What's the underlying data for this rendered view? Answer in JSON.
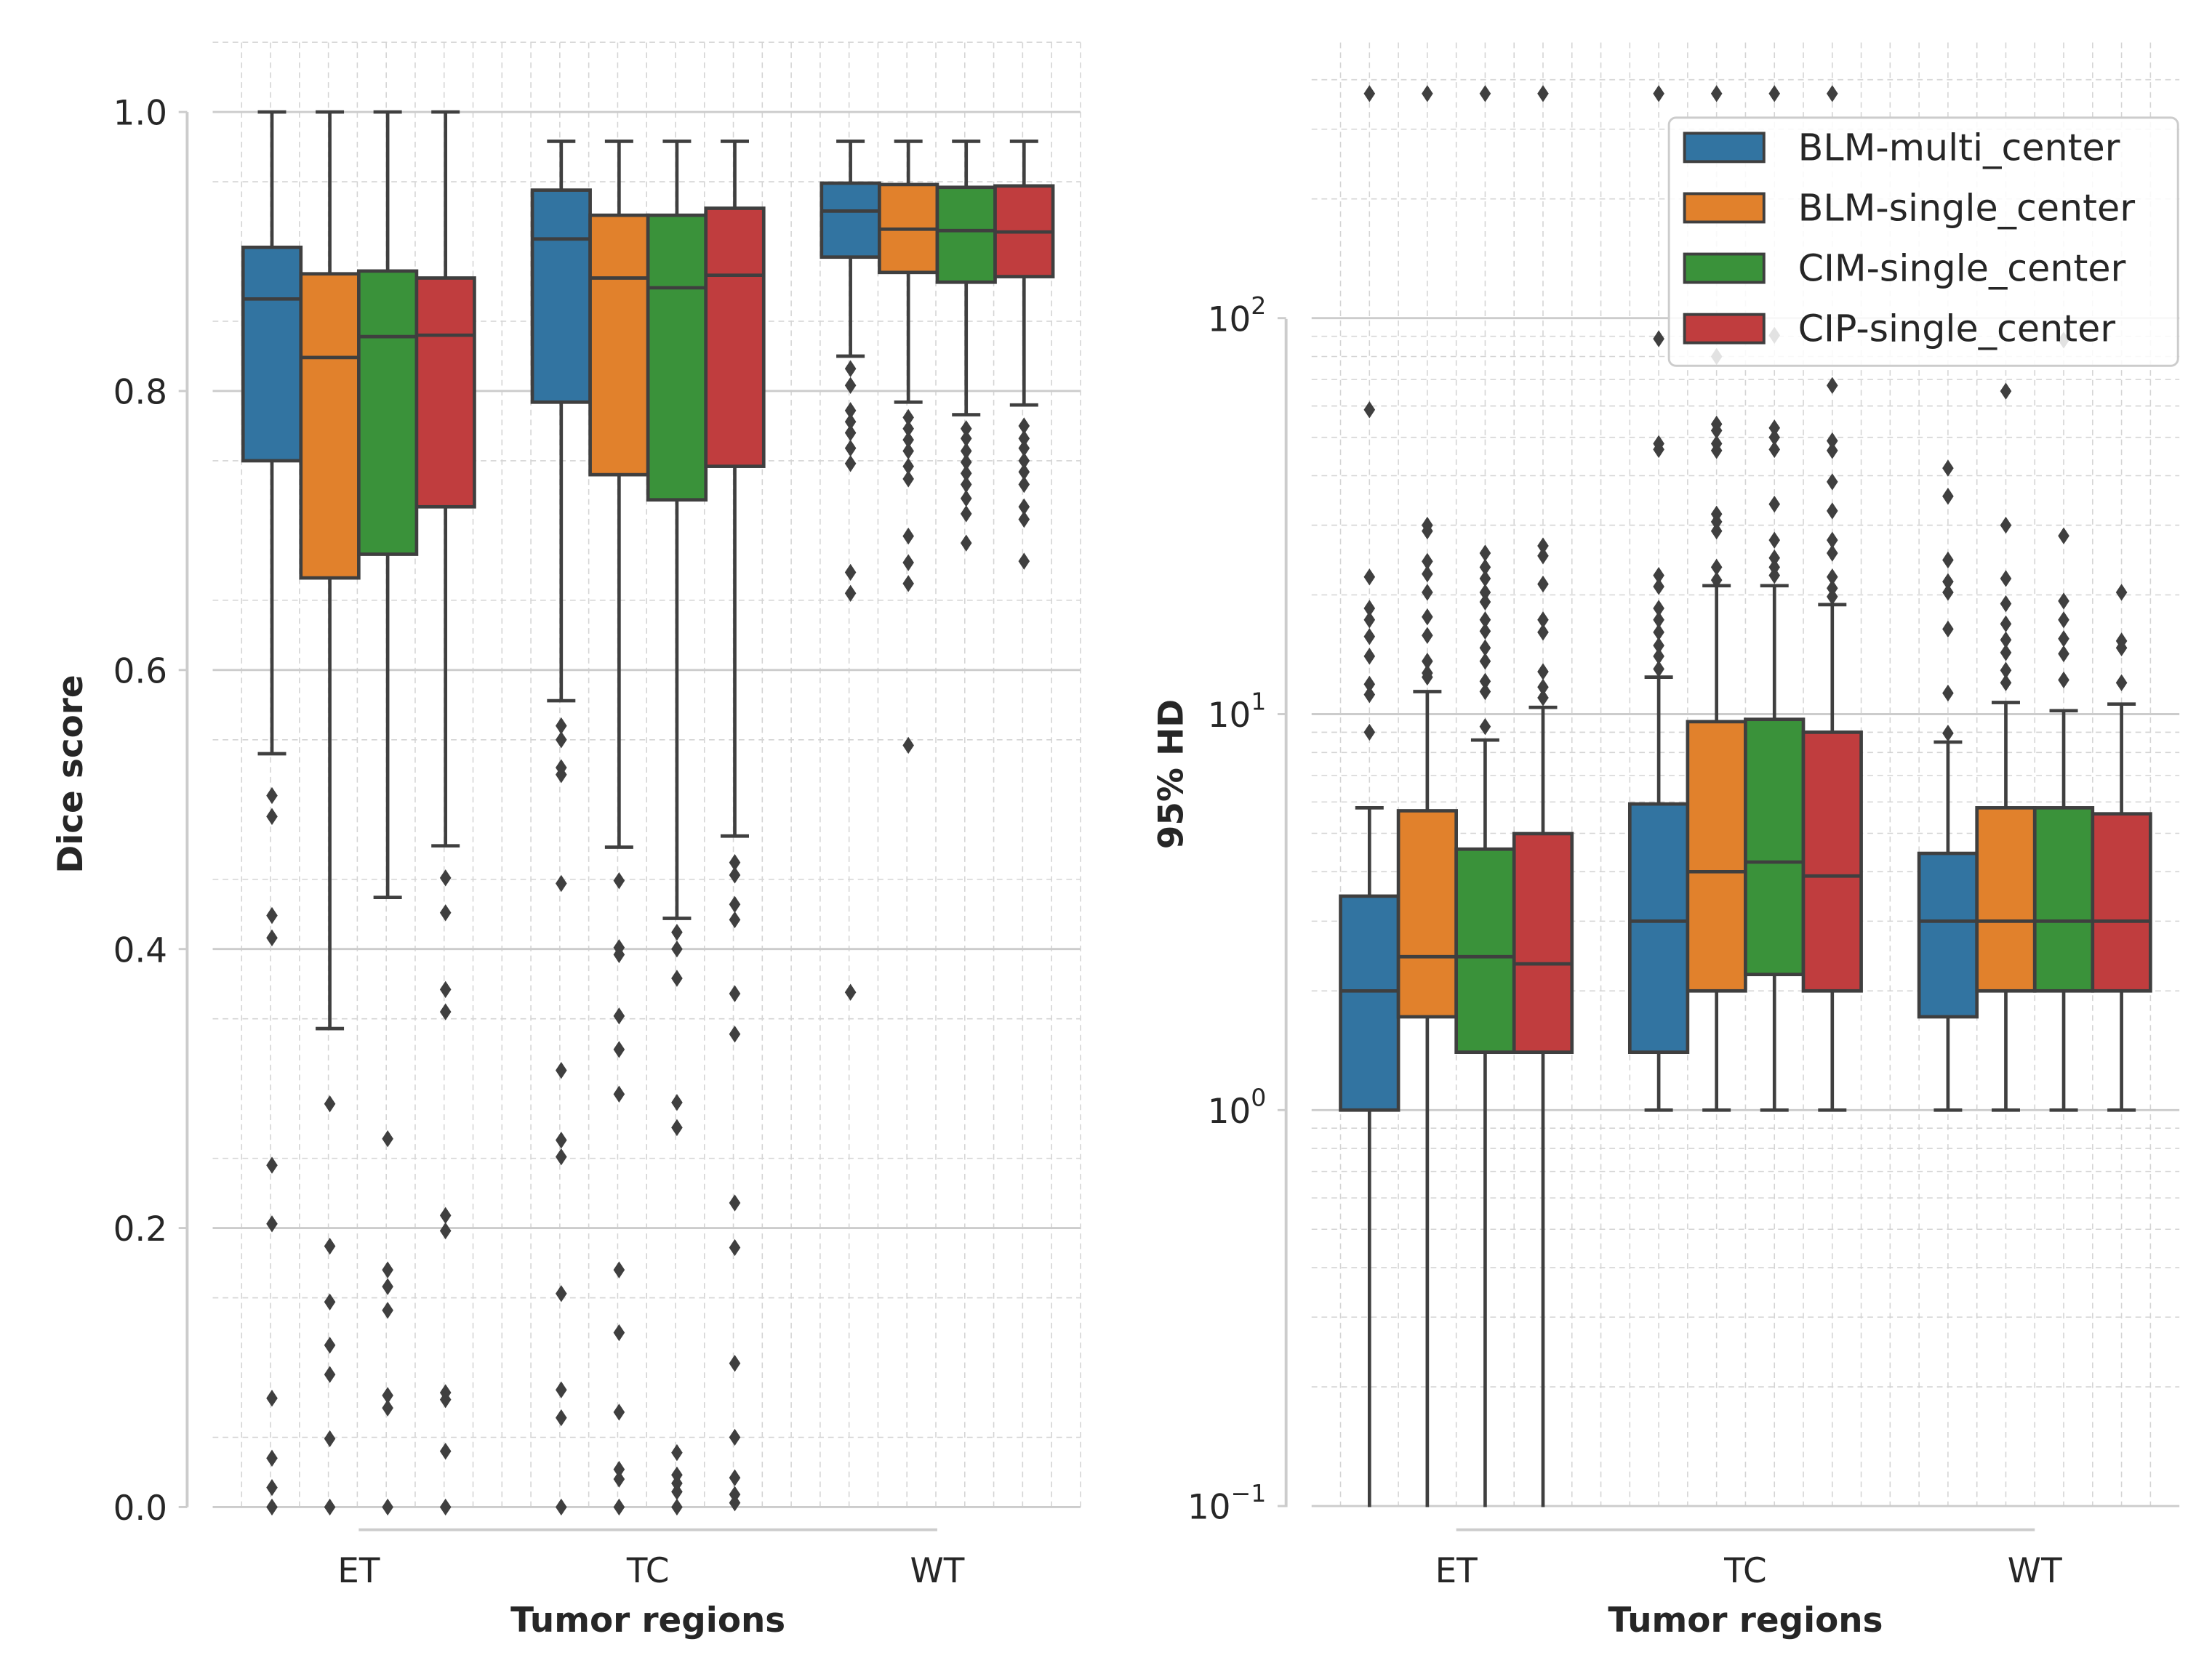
{
  "colors": {
    "BLM-multi_center": "#3274a1",
    "BLM-single_center": "#e1812c",
    "CIM-single_center": "#3a923a",
    "CIP-single_center": "#c03d3e",
    "edge": "#3f3f3f"
  },
  "chart_data": [
    {
      "type": "box",
      "title": "",
      "xlabel": "Tumor regions",
      "ylabel": "Dice score",
      "yscale": "linear",
      "ylim": [
        0,
        1.0
      ],
      "yticks": [
        0.0,
        0.2,
        0.4,
        0.6,
        0.8,
        1.0
      ],
      "ytick_labels": [
        "0.0",
        "0.2",
        "0.4",
        "0.6",
        "0.8",
        "1.0"
      ],
      "categories": [
        "ET",
        "TC",
        "WT"
      ],
      "grid": true,
      "series": [
        {
          "name": "BLM-multi_center",
          "boxes": [
            {
              "min": 0.54,
              "q1": 0.75,
              "median": 0.866,
              "q3": 0.903,
              "max": 1.0,
              "outliers": [
                0.51,
                0.495,
                0.424,
                0.408,
                0.245,
                0.203,
                0.078,
                0.035,
                0.014,
                0.0
              ]
            },
            {
              "min": 0.578,
              "q1": 0.792,
              "median": 0.909,
              "q3": 0.944,
              "max": 0.979,
              "outliers": [
                0.56,
                0.55,
                0.53,
                0.525,
                0.447,
                0.313,
                0.263,
                0.251,
                0.153,
                0.084,
                0.064,
                0.0
              ]
            },
            {
              "min": 0.825,
              "q1": 0.896,
              "median": 0.929,
              "q3": 0.949,
              "max": 0.979,
              "outliers": [
                0.816,
                0.804,
                0.786,
                0.778,
                0.77,
                0.759,
                0.748,
                0.67,
                0.655,
                0.369
              ]
            }
          ]
        },
        {
          "name": "BLM-single_center",
          "boxes": [
            {
              "min": 0.343,
              "q1": 0.666,
              "median": 0.824,
              "q3": 0.884,
              "max": 1.0,
              "outliers": [
                0.289,
                0.187,
                0.147,
                0.116,
                0.095,
                0.049,
                0.0
              ]
            },
            {
              "min": 0.473,
              "q1": 0.74,
              "median": 0.881,
              "q3": 0.926,
              "max": 0.979,
              "outliers": [
                0.449,
                0.401,
                0.396,
                0.352,
                0.328,
                0.296,
                0.17,
                0.125,
                0.068,
                0.027,
                0.02,
                0.0
              ]
            },
            {
              "min": 0.792,
              "q1": 0.885,
              "median": 0.916,
              "q3": 0.948,
              "max": 0.979,
              "outliers": [
                0.781,
                0.773,
                0.765,
                0.757,
                0.746,
                0.737,
                0.696,
                0.677,
                0.662,
                0.546
              ]
            }
          ]
        },
        {
          "name": "CIM-single_center",
          "boxes": [
            {
              "min": 0.437,
              "q1": 0.683,
              "median": 0.839,
              "q3": 0.886,
              "max": 1.0,
              "outliers": [
                0.264,
                0.17,
                0.158,
                0.141,
                0.08,
                0.071,
                0.0
              ]
            },
            {
              "min": 0.422,
              "q1": 0.722,
              "median": 0.874,
              "q3": 0.926,
              "max": 0.979,
              "outliers": [
                0.412,
                0.4,
                0.379,
                0.29,
                0.272,
                0.039,
                0.023,
                0.017,
                0.011,
                0.0
              ]
            },
            {
              "min": 0.783,
              "q1": 0.878,
              "median": 0.915,
              "q3": 0.946,
              "max": 0.979,
              "outliers": [
                0.773,
                0.766,
                0.757,
                0.749,
                0.741,
                0.733,
                0.723,
                0.712,
                0.691
              ]
            }
          ]
        },
        {
          "name": "CIP-single_center",
          "boxes": [
            {
              "min": 0.474,
              "q1": 0.717,
              "median": 0.84,
              "q3": 0.881,
              "max": 1.0,
              "outliers": [
                0.451,
                0.426,
                0.371,
                0.355,
                0.209,
                0.198,
                0.082,
                0.077,
                0.04,
                0.0
              ]
            },
            {
              "min": 0.481,
              "q1": 0.746,
              "median": 0.883,
              "q3": 0.931,
              "max": 0.979,
              "outliers": [
                0.462,
                0.453,
                0.432,
                0.421,
                0.368,
                0.339,
                0.218,
                0.186,
                0.103,
                0.05,
                0.021,
                0.009,
                0.003
              ]
            },
            {
              "min": 0.79,
              "q1": 0.882,
              "median": 0.914,
              "q3": 0.947,
              "max": 0.979,
              "outliers": [
                0.775,
                0.766,
                0.759,
                0.75,
                0.742,
                0.733,
                0.717,
                0.708,
                0.678
              ]
            }
          ]
        }
      ]
    },
    {
      "type": "box",
      "title": "",
      "xlabel": "Tumor regions",
      "ylabel": "95% HD",
      "yscale": "log",
      "ylim": [
        0.1,
        500
      ],
      "yticks": [
        0.1,
        1,
        10,
        100
      ],
      "ytick_labels": [
        {
          "base": "10",
          "exp": "−1"
        },
        {
          "base": "10",
          "exp": "0"
        },
        {
          "base": "10",
          "exp": "1"
        },
        {
          "base": "10",
          "exp": "2"
        }
      ],
      "categories": [
        "ET",
        "TC",
        "WT"
      ],
      "grid": true,
      "legend": {
        "position": "top-right",
        "entries": [
          "BLM-multi_center",
          "BLM-single_center",
          "CIM-single_center",
          "CIP-single_center"
        ]
      },
      "series": [
        {
          "name": "BLM-multi_center",
          "boxes": [
            {
              "min": 0,
              "q1": 1.0,
              "median": 2.0,
              "q3": 3.47,
              "max": 5.8,
              "outliers": [
                369,
                58.7,
                22.2,
                18.5,
                17.3,
                15.7,
                14,
                11.9,
                11.2,
                9.0
              ]
            },
            {
              "min": 1.0,
              "q1": 1.4,
              "median": 3.0,
              "q3": 5.93,
              "max": 12.4,
              "outliers": [
                369,
                88.7,
                48.2,
                46.6,
                22.4,
                21,
                18.5,
                17.3,
                16.1,
                14.9,
                14,
                13
              ]
            },
            {
              "min": 1.0,
              "q1": 1.72,
              "median": 3.0,
              "q3": 4.45,
              "max": 8.5,
              "outliers": [
                41.8,
                35.5,
                24.5,
                21.6,
                20.3,
                16.4,
                11.3,
                8.95
              ]
            }
          ]
        },
        {
          "name": "BLM-single_center",
          "boxes": [
            {
              "min": 0,
              "q1": 1.72,
              "median": 2.44,
              "q3": 5.7,
              "max": 11.4,
              "outliers": [
                369,
                30,
                29,
                24.3,
                22.6,
                20.3,
                17.6,
                15.8,
                13.6,
                12.7,
                12.4
              ]
            },
            {
              "min": 1.0,
              "q1": 2.0,
              "median": 4.0,
              "q3": 9.57,
              "max": 21.1,
              "outliers": [
                369,
                80,
                54,
                52,
                48.2,
                46.3,
                32,
                30.6,
                29,
                23.5,
                21.8
              ]
            },
            {
              "min": 1.0,
              "q1": 2.0,
              "median": 3.0,
              "q3": 5.8,
              "max": 10.7,
              "outliers": [
                65.4,
                30,
                22,
                19,
                16.9,
                15.4,
                14.3,
                12.9,
                12
              ]
            }
          ]
        },
        {
          "name": "CIM-single_center",
          "boxes": [
            {
              "min": 0,
              "q1": 1.4,
              "median": 2.44,
              "q3": 4.56,
              "max": 8.6,
              "outliers": [
                369,
                25.5,
                23.5,
                22,
                20.3,
                19.2,
                17.3,
                16.2,
                14.7,
                13.6,
                12.1,
                11.4,
                9.3
              ]
            },
            {
              "min": 1.0,
              "q1": 2.2,
              "median": 4.23,
              "q3": 9.7,
              "max": 21.1,
              "outliers": [
                369,
                90.5,
                52.8,
                50,
                46.6,
                33.9,
                27.5,
                24.8,
                23.5,
                22.4
              ]
            },
            {
              "min": 1.0,
              "q1": 2.0,
              "median": 3.0,
              "q3": 5.8,
              "max": 10.2,
              "outliers": [
                88,
                28.2,
                19.3,
                17.3,
                15.5,
                14.2,
                12.2
              ]
            }
          ]
        },
        {
          "name": "CIP-single_center",
          "boxes": [
            {
              "min": 0,
              "q1": 1.4,
              "median": 2.34,
              "q3": 4.99,
              "max": 10.4,
              "outliers": [
                369,
                26.6,
                25.1,
                21.3,
                17.3,
                16.1,
                12.8,
                11.7,
                11.0
              ]
            },
            {
              "min": 1.0,
              "q1": 2.0,
              "median": 3.9,
              "q3": 9.0,
              "max": 18.9,
              "outliers": [
                369,
                67.6,
                49,
                46.3,
                38.6,
                32.6,
                27.5,
                25.5,
                22.2,
                20.8,
                19.8
              ]
            },
            {
              "min": 1.0,
              "q1": 2.0,
              "median": 3.0,
              "q3": 5.6,
              "max": 10.6,
              "outliers": [
                20.3,
                15.3,
                14.7,
                12
              ]
            }
          ]
        }
      ]
    }
  ]
}
